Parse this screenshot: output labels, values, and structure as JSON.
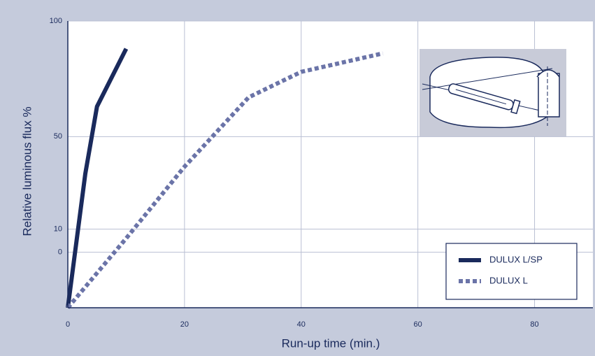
{
  "chart_data": {
    "type": "line",
    "xlabel": "Run-up time (min.)",
    "ylabel": "Relative luminous flux %",
    "xlim": [
      0,
      90
    ],
    "xticks": [
      0,
      20,
      40,
      60,
      80
    ],
    "ylim": [
      -24,
      100
    ],
    "yticks": [
      0,
      10,
      50,
      100
    ],
    "grid": true,
    "legend": "lower right",
    "series": [
      {
        "name": "DULUX L/SP",
        "color": "#1a2a5c",
        "style": "solid",
        "x": [
          0,
          3,
          5,
          10
        ],
        "values": [
          -24,
          34,
          63,
          88
        ]
      },
      {
        "name": "DULUX L",
        "color": "#6b74a8",
        "style": "dotted",
        "x": [
          0,
          10,
          20,
          31,
          40,
          54
        ],
        "values": [
          -24,
          6,
          37,
          67,
          78,
          86
        ]
      }
    ]
  }
}
